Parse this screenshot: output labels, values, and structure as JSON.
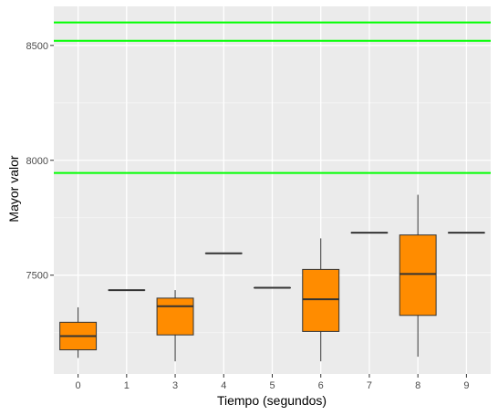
{
  "chart_data": {
    "type": "boxplot",
    "xlabel": "Tiempo (segundos)",
    "ylabel": "Mayor valor",
    "categories": [
      "0",
      "1",
      "3",
      "4",
      "5",
      "6",
      "7",
      "8",
      "9"
    ],
    "boxes": [
      {
        "category": "0",
        "min": 7140,
        "q1": 7175,
        "median": 7235,
        "q3": 7295,
        "max": 7360
      },
      {
        "category": "1",
        "min": 7435,
        "q1": 7435,
        "median": 7435,
        "q3": 7435,
        "max": 7435
      },
      {
        "category": "3",
        "min": 7125,
        "q1": 7240,
        "median": 7365,
        "q3": 7400,
        "max": 7435
      },
      {
        "category": "4",
        "min": 7595,
        "q1": 7595,
        "median": 7595,
        "q3": 7595,
        "max": 7595
      },
      {
        "category": "5",
        "min": 7445,
        "q1": 7445,
        "median": 7445,
        "q3": 7445,
        "max": 7445
      },
      {
        "category": "6",
        "min": 7125,
        "q1": 7255,
        "median": 7395,
        "q3": 7525,
        "max": 7660
      },
      {
        "category": "7",
        "min": 7685,
        "q1": 7685,
        "median": 7685,
        "q3": 7685,
        "max": 7685
      },
      {
        "category": "8",
        "min": 7145,
        "q1": 7325,
        "median": 7505,
        "q3": 7675,
        "max": 7850
      },
      {
        "category": "9",
        "min": 7685,
        "q1": 7685,
        "median": 7685,
        "q3": 7685,
        "max": 7685
      }
    ],
    "hlines": [
      7945,
      8520,
      8600
    ],
    "y_ticks": [
      7500,
      8000,
      8500
    ],
    "ylim": [
      7070,
      8670
    ],
    "grid": true,
    "colors": {
      "box_fill": "#ff8c00",
      "box_stroke": "#333333",
      "hline": "#00ff00",
      "panel": "#ebebeb",
      "grid_major": "#ffffff",
      "grid_minor": "#f5f5f5"
    }
  }
}
